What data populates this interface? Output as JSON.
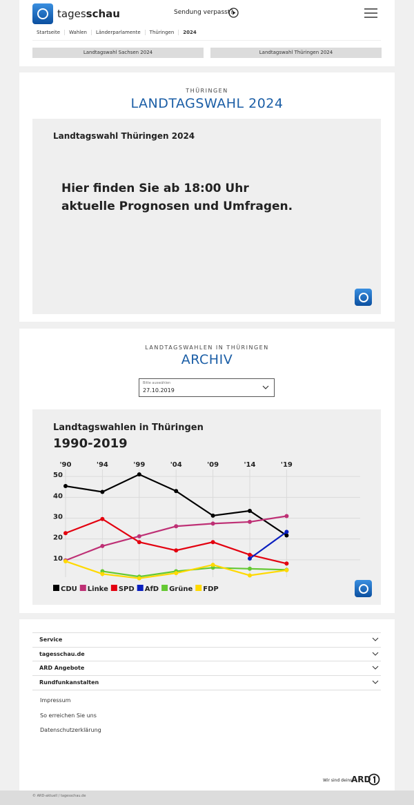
{
  "header": {
    "brand": [
      "tages",
      "schau"
    ],
    "missed": "Sendung verpasst?",
    "breadcrumbs": [
      "Startseite",
      "Wahlen",
      "Länderparlamente",
      "Thüringen",
      "2024"
    ],
    "buttons": [
      "Landtagswahl Sachsen 2024",
      "Landtagswahl Thüringen 2024"
    ]
  },
  "live": {
    "kicker": "THÜRINGEN",
    "title": "LANDTAGSWAHL 2024",
    "box_title": "Landtagswahl Thüringen 2024",
    "message": [
      "Hier finden Sie ab 18:00 Uhr",
      "aktuelle Prognosen und Umfragen."
    ]
  },
  "archive": {
    "kicker": "LANDTAGSWAHLEN IN THÜRINGEN",
    "title": "ARCHIV",
    "select_label": "Bitte auswählen",
    "select_value": "27.10.2019"
  },
  "chart_data": {
    "type": "line",
    "title": "Landtagswahlen in Thüringen",
    "subtitle": "1990-2019",
    "categories": [
      "'90",
      "'94",
      "'99",
      "'04",
      "'09",
      "'14",
      "'19"
    ],
    "series": [
      {
        "name": "CDU",
        "color": "#000000",
        "values": [
          45.4,
          42.6,
          51.0,
          43.0,
          31.2,
          33.5,
          21.7
        ]
      },
      {
        "name": "Linke",
        "color": "#be3075",
        "values": [
          9.7,
          16.6,
          21.3,
          26.1,
          27.4,
          28.2,
          31.0
        ]
      },
      {
        "name": "SPD",
        "color": "#e3000f",
        "values": [
          22.8,
          29.6,
          18.5,
          14.5,
          18.5,
          12.4,
          8.2
        ]
      },
      {
        "name": "AfD",
        "color": "#0a1fbf",
        "values": [
          null,
          null,
          null,
          null,
          null,
          10.6,
          23.4
        ]
      },
      {
        "name": "Grüne",
        "color": "#64c832",
        "values": [
          null,
          4.5,
          1.9,
          4.5,
          6.2,
          5.7,
          5.2
        ]
      },
      {
        "name": "FDP",
        "color": "#ffd900",
        "values": [
          9.3,
          3.2,
          1.1,
          3.6,
          7.6,
          2.5,
          5.0
        ]
      }
    ],
    "ylim": [
      0,
      60
    ],
    "yticks": [
      10,
      20,
      30,
      40,
      50
    ],
    "grid": true
  },
  "footer": {
    "sections": [
      "Service",
      "tagesschau.de",
      "ARD Angebote",
      "Rundfunkanstalten"
    ],
    "links": [
      "Impressum",
      "So erreichen Sie uns",
      "Datenschutzerklärung"
    ],
    "slogan": "Wir sind deins.",
    "ard": "ARD",
    "copyright": "© ARD-aktuell / tagesschau.de"
  }
}
